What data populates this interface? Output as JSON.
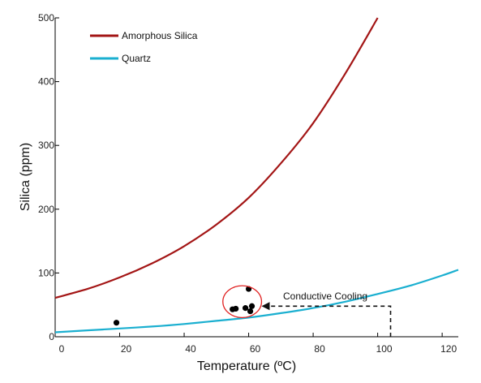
{
  "chart_data": {
    "type": "line",
    "title": "",
    "xlabel": "Temperature (ºC)",
    "ylabel": "Silica (ppm)",
    "xlim": [
      0,
      125
    ],
    "ylim": [
      0,
      500
    ],
    "x_ticks": [
      0,
      20,
      40,
      60,
      80,
      100,
      120
    ],
    "y_ticks": [
      0,
      100,
      200,
      300,
      400,
      500
    ],
    "grid": false,
    "legend_position": "top-left",
    "series": [
      {
        "name": "Amorphous Silica",
        "color": "#a31515",
        "x": [
          0,
          10,
          20,
          30,
          40,
          50,
          60,
          70,
          80,
          90,
          100
        ],
        "y": [
          61,
          75,
          93,
          115,
          142,
          176,
          218,
          272,
          335,
          413,
          500
        ]
      },
      {
        "name": "Quartz",
        "color": "#1aafd0",
        "x": [
          0,
          10,
          20,
          30,
          40,
          50,
          60,
          70,
          80,
          90,
          100,
          110,
          120,
          125
        ],
        "y": [
          7,
          10,
          13,
          16,
          20,
          25,
          30,
          37,
          45,
          55,
          67,
          80,
          96,
          105
        ]
      },
      {
        "name": "",
        "type": "scatter",
        "color": "#000000",
        "x": [
          19,
          55,
          56,
          59,
          60,
          60.5,
          61
        ],
        "y": [
          22,
          43,
          44,
          45,
          75,
          40,
          48
        ]
      }
    ],
    "annotations": [
      {
        "text": "Conductive Cooling",
        "arrow": {
          "from": {
            "x": 104,
            "y": 0
          },
          "corner": {
            "x": 104,
            "y": 48
          },
          "to": {
            "x": 64,
            "y": 48
          }
        },
        "circle": {
          "cx": 58,
          "cy": 55,
          "rx": 6,
          "ry": 25,
          "color": "#e02020"
        }
      }
    ]
  }
}
